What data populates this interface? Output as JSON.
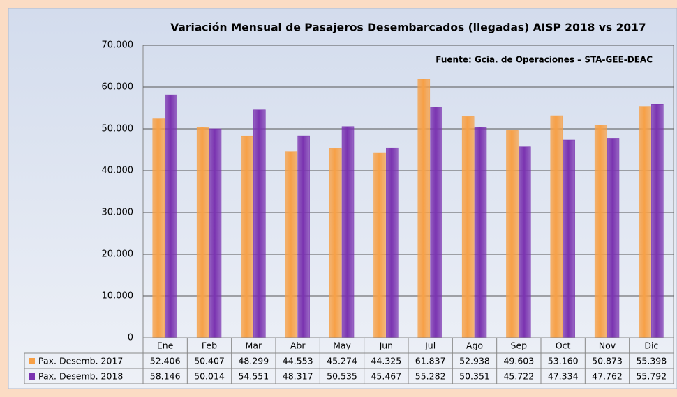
{
  "chart_data": {
    "type": "bar",
    "title": "Variación Mensual de Pasajeros Desembarcados (llegadas) AISP 2018 vs 2017",
    "annotation": "Fuente: Gcia. de Operaciones – STA-GEE-DEAC",
    "categories": [
      "Ene",
      "Feb",
      "Mar",
      "Abr",
      "May",
      "Jun",
      "Jul",
      "Ago",
      "Sep",
      "Oct",
      "Nov",
      "Dic"
    ],
    "series": [
      {
        "name": "Pax. Desemb. 2017",
        "color": "#f7a046",
        "values": [
          52406,
          50407,
          48299,
          44553,
          45274,
          44325,
          61837,
          52938,
          49603,
          53160,
          50873,
          55398
        ],
        "value_labels": [
          "52.406",
          "50.407",
          "48.299",
          "44.553",
          "45.274",
          "44.325",
          "61.837",
          "52.938",
          "49.603",
          "53.160",
          "50.873",
          "55.398"
        ]
      },
      {
        "name": "Pax. Desemb. 2018",
        "color": "#7a33b0",
        "values": [
          58146,
          50014,
          54551,
          48317,
          50535,
          45467,
          55282,
          50351,
          45722,
          47334,
          47762,
          55792
        ],
        "value_labels": [
          "58.146",
          "50.014",
          "54.551",
          "48.317",
          "50.535",
          "45.467",
          "55.282",
          "50.351",
          "45.722",
          "47.334",
          "47.762",
          "55.792"
        ]
      }
    ],
    "ylim": [
      0,
      70000
    ],
    "yticks": [
      0,
      {
        "value": 10000,
        "label": "10.000"
      },
      {
        "value": 20000,
        "label": "20.000"
      },
      {
        "value": 30000,
        "label": "30.000"
      },
      {
        "value": 40000,
        "label": "40.000"
      },
      {
        "value": 50000,
        "label": "50.000"
      },
      {
        "value": 60000,
        "label": "60.000"
      },
      {
        "value": 70000,
        "label": "70.000"
      }
    ],
    "grid": true
  }
}
